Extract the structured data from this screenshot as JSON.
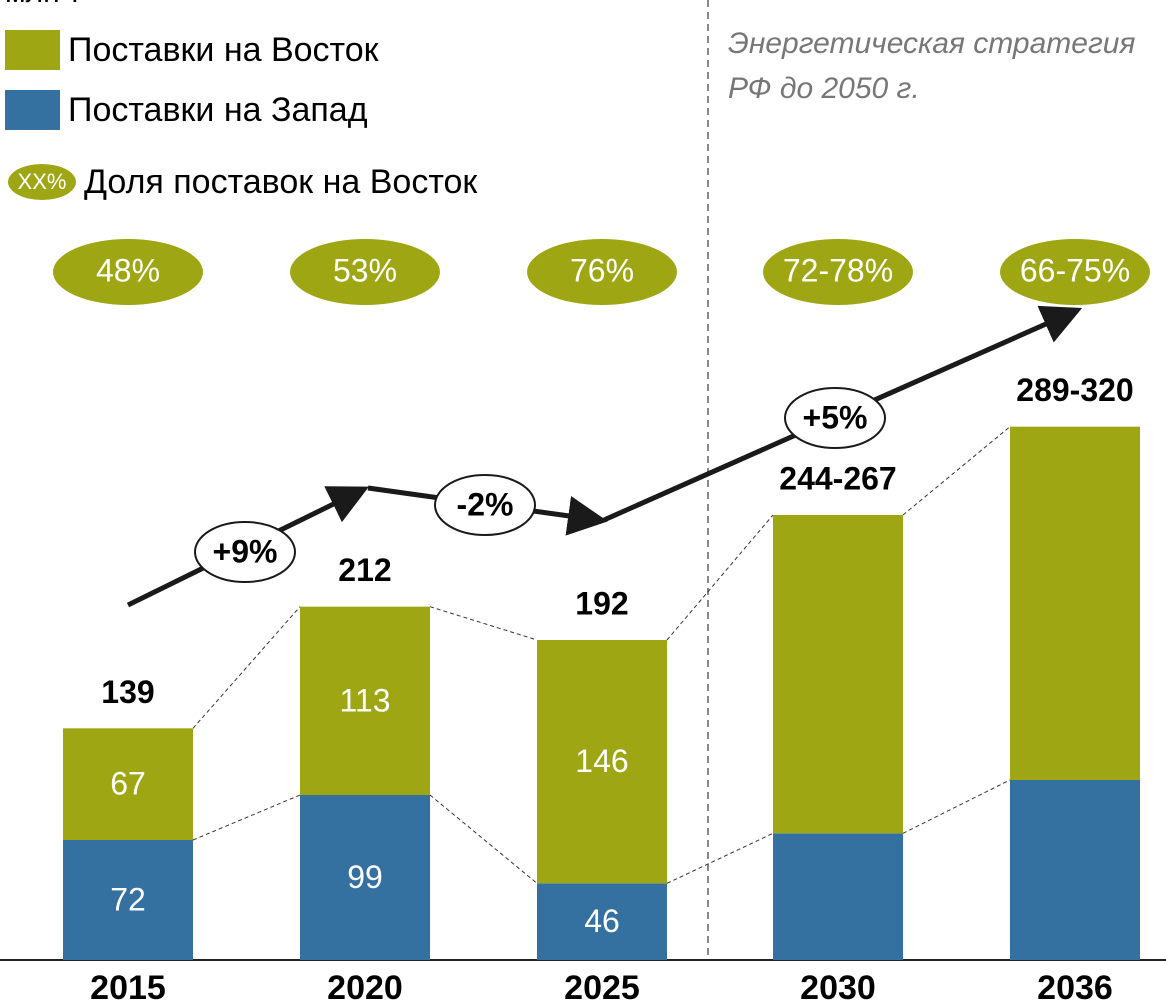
{
  "chart_data": {
    "type": "bar",
    "stacked": true,
    "unit_label": "млн т",
    "categories": [
      "2015",
      "2020",
      "2025",
      "2030",
      "2036"
    ],
    "series": [
      {
        "name": "Поставки на Запад",
        "color": "#3470a0",
        "values": [
          72,
          99,
          46,
          76,
          108
        ],
        "value_labels": [
          "72",
          "99",
          "46",
          null,
          null
        ]
      },
      {
        "name": "Поставки на Восток",
        "color": "#9ea613",
        "values": [
          67,
          113,
          146,
          191,
          212
        ],
        "value_labels": [
          "67",
          "113",
          "146",
          null,
          null
        ]
      }
    ],
    "totals": [
      "139",
      "212",
      "192",
      "244-267",
      "289-320"
    ],
    "share_legend": {
      "marker": "XX%",
      "label": "Доля поставок на Восток"
    },
    "shares": [
      "48%",
      "53%",
      "76%",
      "72-78%",
      "66-75%"
    ],
    "growth": [
      "+9%",
      "-2%",
      "+5%"
    ],
    "strategy_note": [
      "Энергетическая стратегия",
      "РФ до 2050 г."
    ],
    "ylim": [
      0,
      330
    ]
  }
}
